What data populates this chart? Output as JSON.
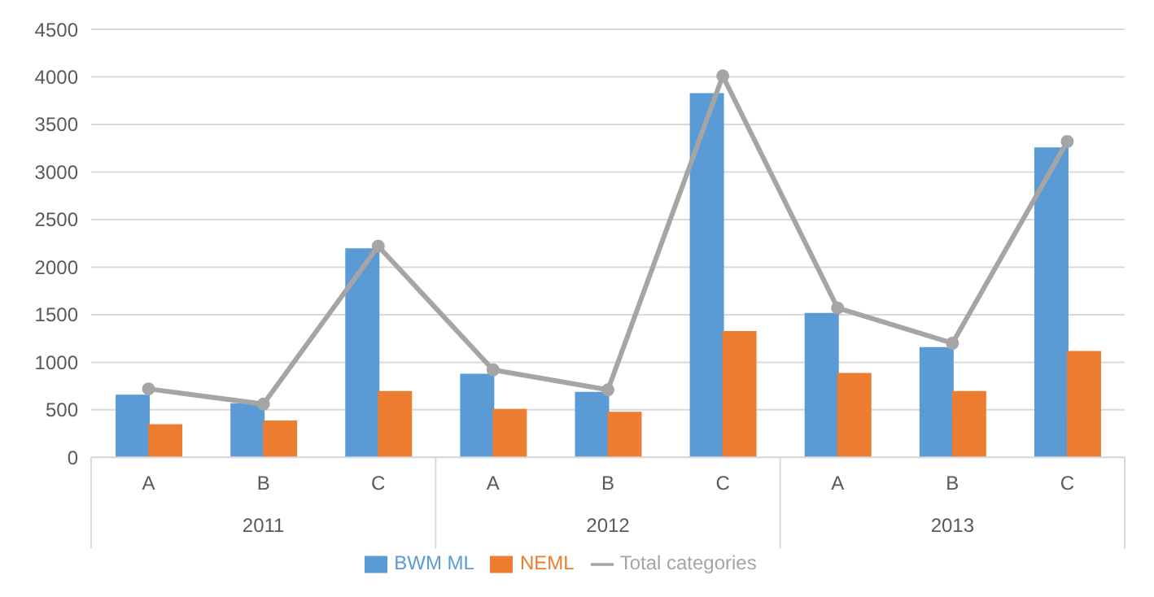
{
  "chart_data": {
    "type": "bar",
    "categories": [
      "A",
      "B",
      "C",
      "A",
      "B",
      "C",
      "A",
      "B",
      "C"
    ],
    "annotations": [
      "2011",
      "2012",
      "2013"
    ],
    "series": [
      {
        "name": "BWM ML",
        "color": "#5b9bd5",
        "values": [
          650,
          560,
          2190,
          870,
          680,
          3820,
          1510,
          1150,
          3250
        ]
      },
      {
        "name": "NEML",
        "color": "#ed7d31",
        "values": [
          340,
          380,
          690,
          500,
          470,
          1320,
          880,
          690,
          1110
        ]
      },
      {
        "name": "Total categories",
        "type": "line",
        "color": "#a5a5a5",
        "marker": "circle",
        "values": [
          720,
          560,
          2220,
          920,
          710,
          4010,
          1570,
          1200,
          3320
        ]
      }
    ],
    "ylim": [
      0,
      4500
    ],
    "yticks": [
      0,
      500,
      1000,
      1500,
      2000,
      2500,
      3000,
      3500,
      4000,
      4500
    ],
    "grid": "y",
    "legend": "bottom"
  }
}
